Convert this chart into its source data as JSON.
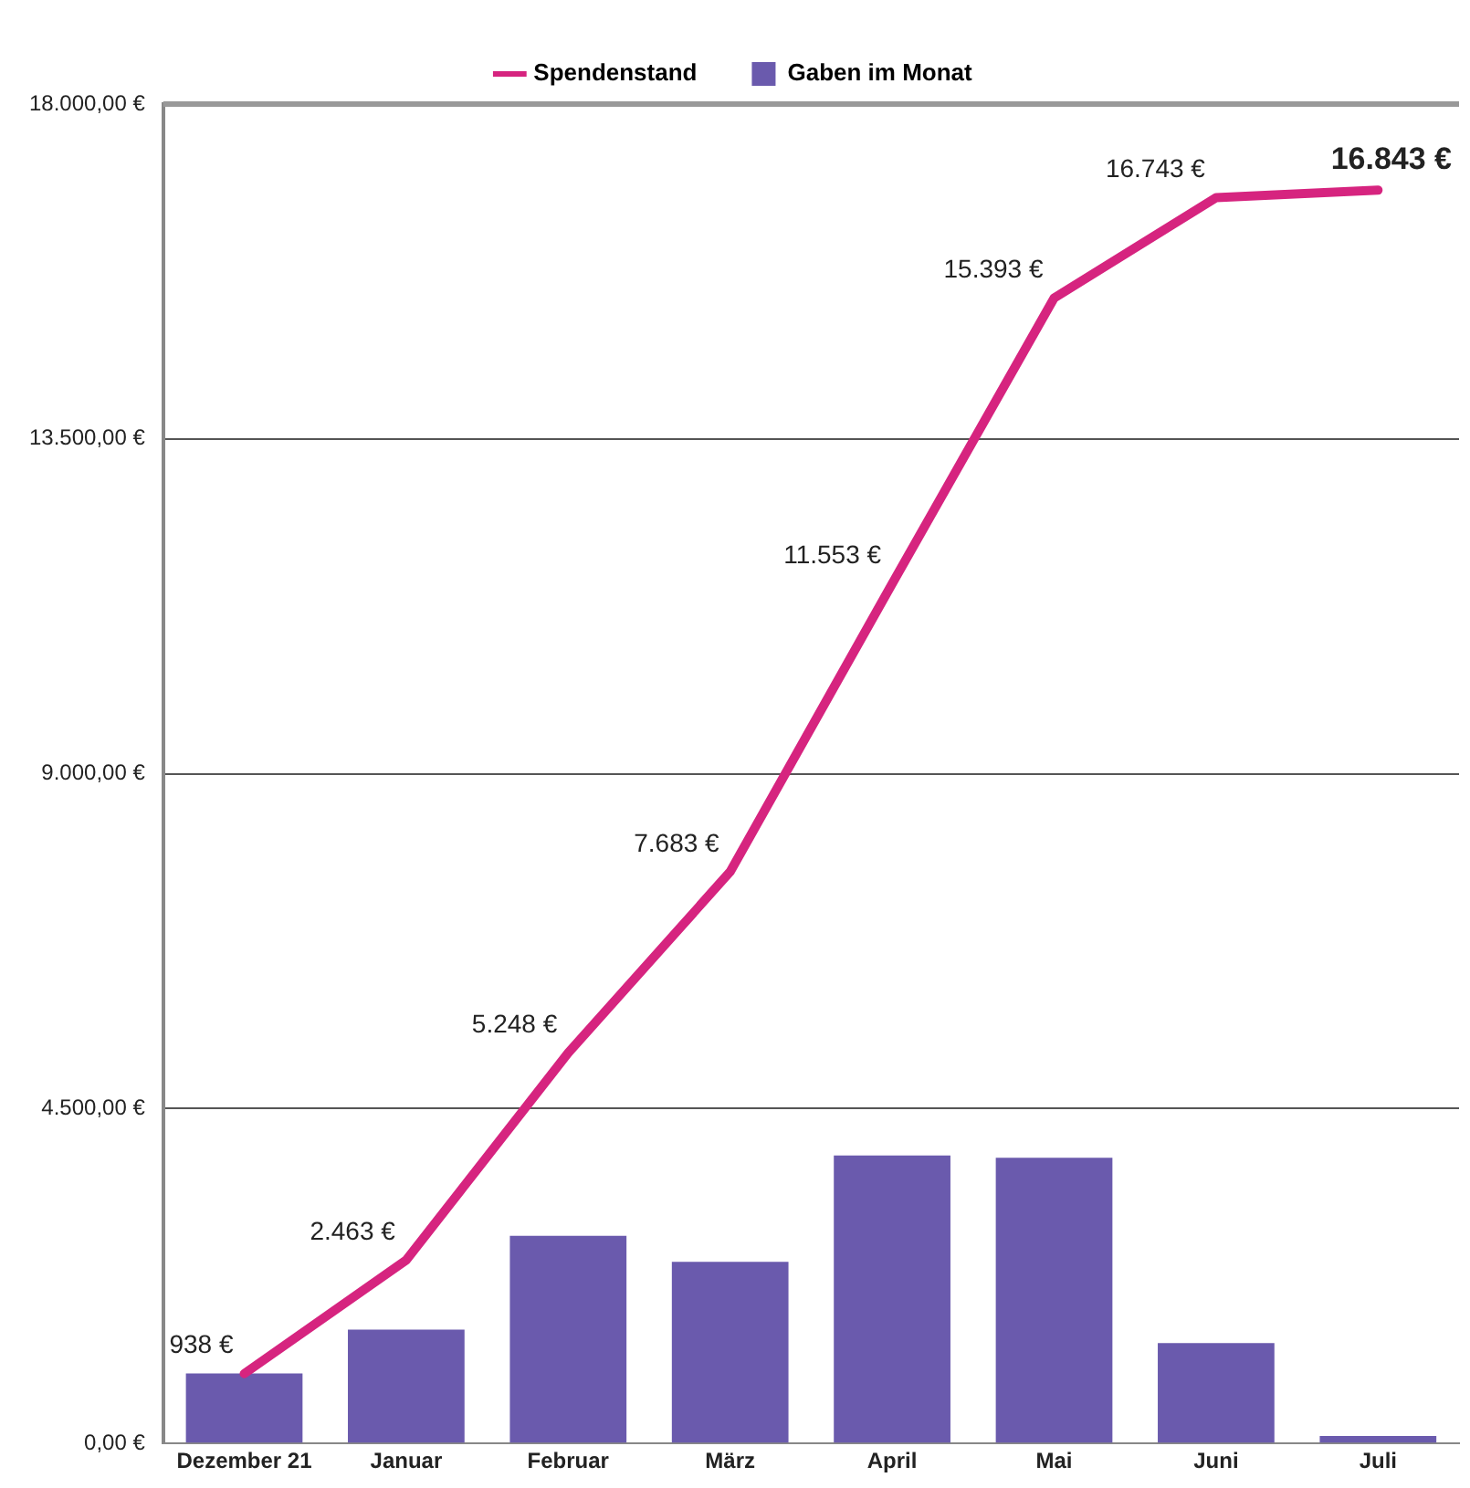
{
  "chart_data": {
    "type": "bar",
    "categories": [
      "Dezember 21",
      "Januar",
      "Februar",
      "März",
      "April",
      "Mai",
      "Juni",
      "Juli"
    ],
    "series": [
      {
        "name": "Spendenstand",
        "type": "line",
        "color": "#d6247f",
        "values": [
          938,
          2463,
          5248,
          7683,
          11553,
          15393,
          16743,
          16843
        ],
        "value_labels": [
          "938 €",
          "2.463 €",
          "5.248 €",
          "7.683 €",
          "11.553 €",
          "15.393 €",
          "16.743 €",
          "16.843 €"
        ]
      },
      {
        "name": "Gaben im Monat",
        "type": "bar",
        "color": "#6a5aad",
        "values": [
          940,
          1530,
          2790,
          2440,
          3870,
          3840,
          1350,
          100
        ]
      }
    ],
    "ylim": [
      0,
      18000
    ],
    "yticks": [
      {
        "value": 0,
        "label": "0,00 €"
      },
      {
        "value": 4500,
        "label": "4.500,00 €"
      },
      {
        "value": 9000,
        "label": "9.000,00 €"
      },
      {
        "value": 13500,
        "label": "13.500,00 €"
      },
      {
        "value": 18000,
        "label": "18.000,00 €"
      }
    ],
    "grid": "y",
    "legend": "top",
    "marker": "none"
  }
}
